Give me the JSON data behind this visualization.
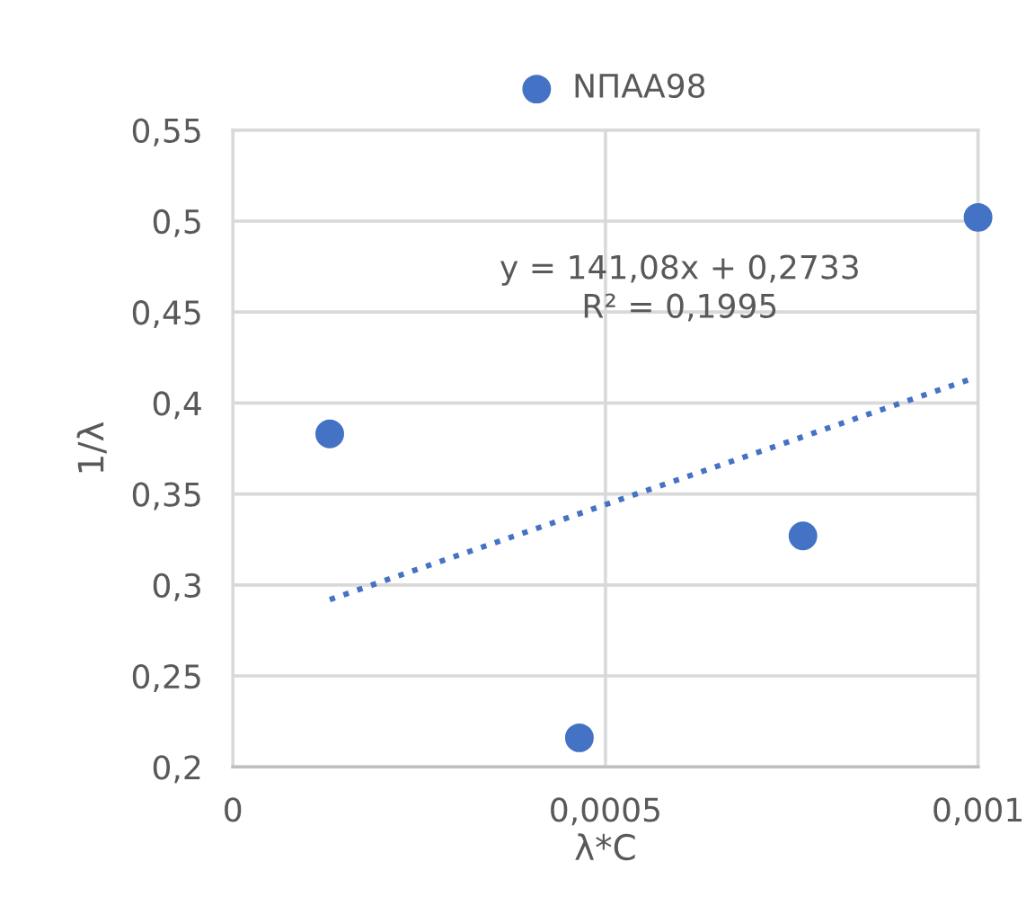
{
  "chart_data": {
    "type": "scatter",
    "xlabel": "λ*C",
    "ylabel": "1/λ",
    "annotations": [
      "y = 141,08x + 0,2733\nR² = 0,1995"
    ],
    "series": [
      {
        "name": "NПАА98",
        "color": "#4472c4",
        "marker": "circle",
        "x": [
          0.00013,
          0.000465,
          0.000765,
          0.001
        ],
        "values": [
          0.383,
          0.216,
          0.327,
          0.502
        ]
      },
      {
        "type": "line",
        "color": "#4472c4",
        "line_style": "dotted",
        "marker": "none",
        "x": [
          0.00013,
          0.000996
        ],
        "values": [
          0.292,
          0.414
        ]
      }
    ],
    "xlim": [
      0,
      0.001
    ],
    "ylim": [
      0.2,
      0.55
    ],
    "xticks": [
      0,
      {
        "value": 0.0005,
        "label": "0,0005"
      },
      {
        "value": 0.001,
        "label": "0,001"
      }
    ],
    "yticks": [
      {
        "value": 0.2,
        "label": "0,2"
      },
      {
        "value": 0.25,
        "label": "0,25"
      },
      {
        "value": 0.3,
        "label": "0,3"
      },
      {
        "value": 0.35,
        "label": "0,35"
      },
      {
        "value": 0.4,
        "label": "0,4"
      },
      {
        "value": 0.45,
        "label": "0,45"
      },
      {
        "value": 0.5,
        "label": "0,5"
      },
      {
        "value": 0.55,
        "label": "0,55"
      }
    ],
    "grid": true,
    "legend": "top"
  }
}
